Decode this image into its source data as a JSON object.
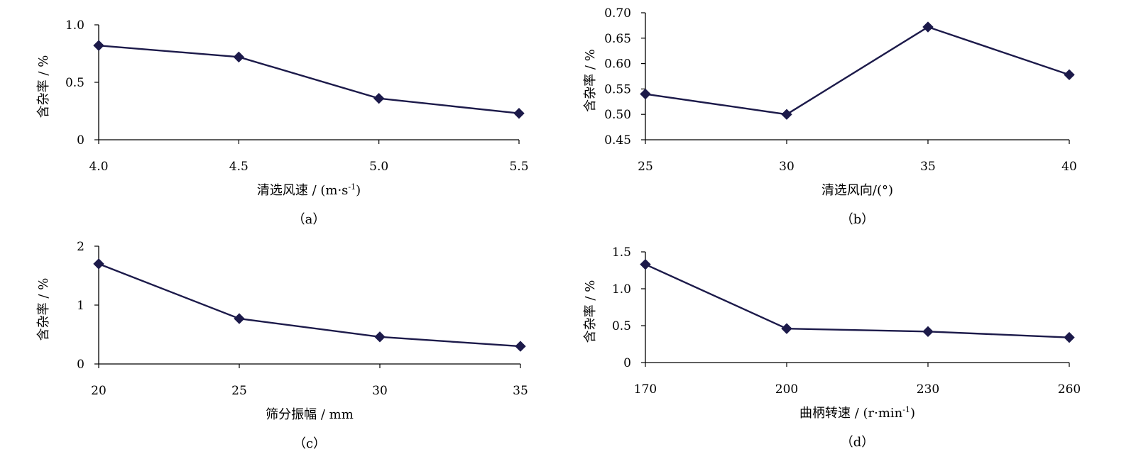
{
  "chart_data": [
    {
      "id": "a",
      "type": "line",
      "caption": "（a）",
      "xlabel": "清选风速 / (m·s-1)",
      "ylabel": "含杂率 / %",
      "categories": [
        "4.0",
        "4.5",
        "5.0",
        "5.5"
      ],
      "values": [
        0.82,
        0.72,
        0.36,
        0.23
      ],
      "ylim": [
        0,
        1.0
      ],
      "yticks": [
        "0",
        "0.5",
        "1.0"
      ],
      "marker": "diamond",
      "grid": false,
      "color": "#1c1a4a"
    },
    {
      "id": "b",
      "type": "line",
      "caption": "（b）",
      "xlabel": "清选风向/(°)",
      "ylabel": "含杂率 / %",
      "categories": [
        "25",
        "30",
        "35",
        "40"
      ],
      "values": [
        0.54,
        0.5,
        0.672,
        0.578
      ],
      "ylim": [
        0.45,
        0.7
      ],
      "yticks": [
        "0.45",
        "0.50",
        "0.55",
        "0.60",
        "0.65",
        "0.70"
      ],
      "marker": "diamond",
      "grid": false,
      "color": "#1c1a4a"
    },
    {
      "id": "c",
      "type": "line",
      "caption": "（c）",
      "xlabel": "筛分振幅 / mm",
      "ylabel": "含杂率 / %",
      "categories": [
        "20",
        "25",
        "30",
        "35"
      ],
      "values": [
        1.7,
        0.77,
        0.46,
        0.3
      ],
      "ylim": [
        0,
        2
      ],
      "yticks": [
        "0",
        "1",
        "2"
      ],
      "marker": "diamond",
      "grid": false,
      "color": "#1c1a4a"
    },
    {
      "id": "d",
      "type": "line",
      "caption": "（d）",
      "xlabel": "曲柄转速 / (r·min-1)",
      "ylabel": "含杂率 / %",
      "categories": [
        "170",
        "200",
        "230",
        "260"
      ],
      "values": [
        1.33,
        0.46,
        0.42,
        0.34
      ],
      "ylim": [
        0,
        1.5
      ],
      "yticks": [
        "0",
        "0.5",
        "1.0",
        "1.5"
      ],
      "marker": "diamond",
      "grid": false,
      "color": "#1c1a4a"
    }
  ]
}
